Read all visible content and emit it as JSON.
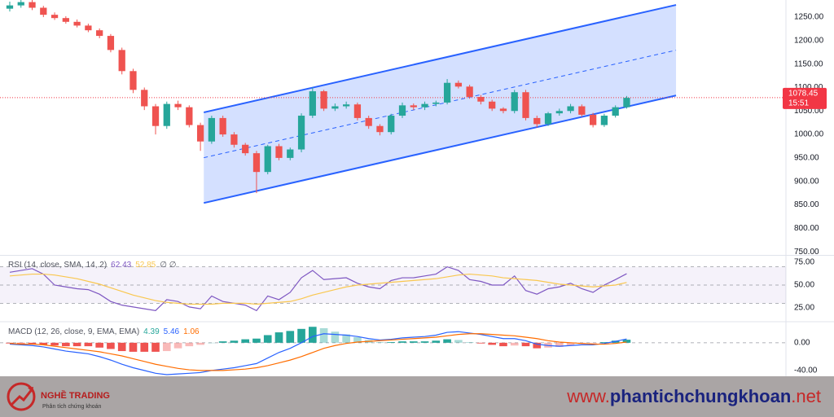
{
  "chart_data": [
    {
      "type": "candlestick",
      "xlim": [
        -0.87,
        69.2
      ],
      "ylim": [
        745,
        1286.5
      ],
      "yticks": [
        {
          "value": 750,
          "label": "750.00"
        },
        {
          "value": 800,
          "label": "800.00"
        },
        {
          "value": 850,
          "label": "850.00"
        },
        {
          "value": 900,
          "label": "900.00"
        },
        {
          "value": 950,
          "label": "950.00"
        },
        {
          "value": 1000,
          "label": "1000.00"
        },
        {
          "value": 1050,
          "label": "1050.00"
        },
        {
          "value": 1100,
          "label": "1100.00"
        },
        {
          "value": 1150,
          "label": "1150.00"
        },
        {
          "value": 1200,
          "label": "1200.00"
        },
        {
          "value": 1250,
          "label": "1250.00"
        }
      ],
      "up_color": "#26a69a",
      "down_color": "#ef5350",
      "open": [
        1268,
        1275,
        1282,
        1270,
        1255,
        1248,
        1240,
        1232,
        1222,
        1210,
        1180,
        1135,
        1095,
        1060,
        1018,
        1065,
        1058,
        1020,
        985,
        1035,
        1000,
        978,
        960,
        920,
        975,
        950,
        968,
        1040,
        1092,
        1055,
        1060,
        1064,
        1035,
        1018,
        1005,
        1040,
        1062,
        1058,
        1065,
        1068,
        1110,
        1102,
        1080,
        1070,
        1055,
        1050,
        1090,
        1035,
        1022,
        1045,
        1050,
        1060,
        1042,
        1020,
        1040,
        1058
      ],
      "high": [
        1283,
        1290,
        1288,
        1274,
        1260,
        1252,
        1245,
        1236,
        1226,
        1214,
        1185,
        1140,
        1100,
        1065,
        1070,
        1072,
        1062,
        1025,
        1040,
        1040,
        1005,
        982,
        965,
        978,
        980,
        972,
        1045,
        1100,
        1095,
        1066,
        1070,
        1068,
        1040,
        1022,
        1044,
        1068,
        1066,
        1070,
        1072,
        1118,
        1115,
        1106,
        1084,
        1074,
        1058,
        1095,
        1095,
        1040,
        1048,
        1055,
        1065,
        1064,
        1046,
        1044,
        1062,
        1082
      ],
      "low": [
        1262,
        1270,
        1265,
        1250,
        1244,
        1236,
        1228,
        1218,
        1205,
        1175,
        1128,
        1088,
        1052,
        1000,
        1012,
        1052,
        1015,
        965,
        980,
        995,
        972,
        955,
        875,
        915,
        945,
        945,
        962,
        1035,
        1050,
        1050,
        1055,
        1030,
        1012,
        998,
        1000,
        1035,
        1052,
        1052,
        1060,
        1064,
        1098,
        1076,
        1064,
        1050,
        1045,
        1045,
        1030,
        1015,
        1018,
        1040,
        1045,
        1038,
        1015,
        1016,
        1036,
        1055
      ],
      "close": [
        1275,
        1282,
        1270,
        1255,
        1248,
        1240,
        1232,
        1222,
        1210,
        1180,
        1135,
        1095,
        1060,
        1018,
        1065,
        1058,
        1020,
        985,
        1035,
        1000,
        978,
        960,
        920,
        975,
        950,
        968,
        1040,
        1092,
        1055,
        1060,
        1064,
        1035,
        1018,
        1005,
        1040,
        1062,
        1058,
        1065,
        1068,
        1110,
        1102,
        1080,
        1070,
        1055,
        1050,
        1090,
        1035,
        1022,
        1045,
        1050,
        1060,
        1042,
        1020,
        1040,
        1058,
        1078
      ],
      "channel": {
        "x": [
          17.3,
          59.4
        ],
        "upper": [
          1047,
          1276
        ],
        "lower": [
          854,
          1083
        ],
        "color": "#2962ff"
      },
      "last_price": {
        "value": 1078.45,
        "label": "1078.45",
        "time": "15:51",
        "color": "#f23645"
      }
    },
    {
      "type": "line",
      "title": "RSI (14, close, SMA, 14, 2)",
      "legend_values": [
        "62.43",
        "52.85",
        "∅ ∅"
      ],
      "xlim": [
        -0.87,
        69.2
      ],
      "ylim": [
        12.5,
        81.25
      ],
      "yticks": [
        {
          "value": 25,
          "label": "25.00"
        },
        {
          "value": 50,
          "label": "50.00"
        },
        {
          "value": 75,
          "label": "75.00"
        }
      ],
      "levels": [
        30,
        50,
        70
      ],
      "band_color": "#7e57c2",
      "series": [
        {
          "kind": "line",
          "color": "#7e57c2",
          "values": [
            64,
            66,
            68,
            62,
            50,
            48,
            46,
            45,
            40,
            32,
            28,
            26,
            24,
            22,
            34,
            32,
            26,
            24,
            38,
            32,
            30,
            28,
            22,
            38,
            34,
            42,
            58,
            66,
            56,
            57,
            58,
            52,
            48,
            46,
            55,
            58,
            58,
            60,
            62,
            70,
            66,
            56,
            54,
            50,
            50,
            60,
            44,
            40,
            46,
            48,
            52,
            46,
            42,
            50,
            56,
            62.43
          ]
        },
        {
          "kind": "line",
          "color": "#f9c74f",
          "values": [
            60,
            61,
            62,
            62,
            61,
            59,
            57,
            54,
            51,
            47,
            43,
            39,
            36,
            33,
            31,
            30,
            29,
            29,
            29,
            30,
            30,
            30,
            29,
            30,
            31,
            32,
            35,
            39,
            42,
            45,
            48,
            50,
            51,
            52,
            53,
            54,
            55,
            56,
            57,
            59,
            61,
            62,
            61,
            60,
            58,
            57,
            56,
            55,
            53,
            51,
            50,
            49,
            48,
            49,
            50,
            52.85
          ]
        }
      ]
    },
    {
      "type": "combo",
      "title": "MACD (12, 26, close, 9, EMA, EMA)",
      "legend_values": [
        "4.39",
        "5.46",
        "1.06"
      ],
      "xlim": [
        -0.87,
        69.2
      ],
      "ylim": [
        -46,
        28
      ],
      "yticks": [
        {
          "value": -40,
          "label": "-40.00"
        },
        {
          "value": 0,
          "label": "0.00"
        }
      ],
      "levels": [
        0
      ],
      "series": [
        {
          "kind": "bar",
          "color": "#26a69a",
          "negative_color": "#ef5350",
          "values": [
            -1,
            -1,
            -2,
            -3,
            -4,
            -5,
            -5,
            -5,
            -7,
            -9,
            -12,
            -13,
            -13,
            -13,
            -12,
            -8,
            -5,
            -3,
            0,
            2,
            3,
            5,
            6,
            11,
            15,
            17,
            20,
            23,
            21,
            16,
            12,
            8,
            4,
            1,
            1,
            2,
            2,
            2,
            3,
            5,
            4,
            1,
            -1,
            -3,
            -5,
            -4,
            -5,
            -8,
            -7,
            -6,
            -4,
            -2,
            -1,
            1,
            3,
            4.39
          ]
        },
        {
          "kind": "line",
          "color": "#2962ff",
          "values": [
            -2,
            -3,
            -4,
            -6,
            -9,
            -12,
            -14,
            -16,
            -20,
            -25,
            -31,
            -36,
            -40,
            -44,
            -46,
            -45,
            -44,
            -43,
            -40,
            -38,
            -36,
            -33,
            -30,
            -22,
            -14,
            -8,
            0,
            9,
            13,
            12,
            11,
            9,
            6,
            4,
            5,
            7,
            8,
            9,
            11,
            15,
            16,
            14,
            12,
            9,
            6,
            6,
            3,
            -2,
            -4,
            -5,
            -4,
            -3,
            -3,
            -1,
            2,
            5.46
          ]
        },
        {
          "kind": "line",
          "color": "#ff6d00",
          "values": [
            -1,
            -2,
            -2,
            -3,
            -5,
            -7,
            -9,
            -11,
            -13,
            -16,
            -19,
            -23,
            -27,
            -31,
            -34,
            -37,
            -39,
            -40,
            -40,
            -40,
            -39,
            -38,
            -36,
            -33,
            -29,
            -25,
            -20,
            -14,
            -8,
            -4,
            -1,
            1,
            2,
            3,
            4,
            5,
            6,
            7,
            8,
            10,
            12,
            13,
            13,
            12,
            11,
            10,
            8,
            6,
            3,
            1,
            0,
            -1,
            -2,
            -2,
            -1,
            1.06
          ]
        }
      ]
    }
  ],
  "footer": {
    "brand": "NGHỀ TRADING",
    "tagline": "Phân tích chứng khoán",
    "url_prefix": "www.",
    "url_name": "phantichchungkhoan",
    "url_suffix": ".net"
  }
}
